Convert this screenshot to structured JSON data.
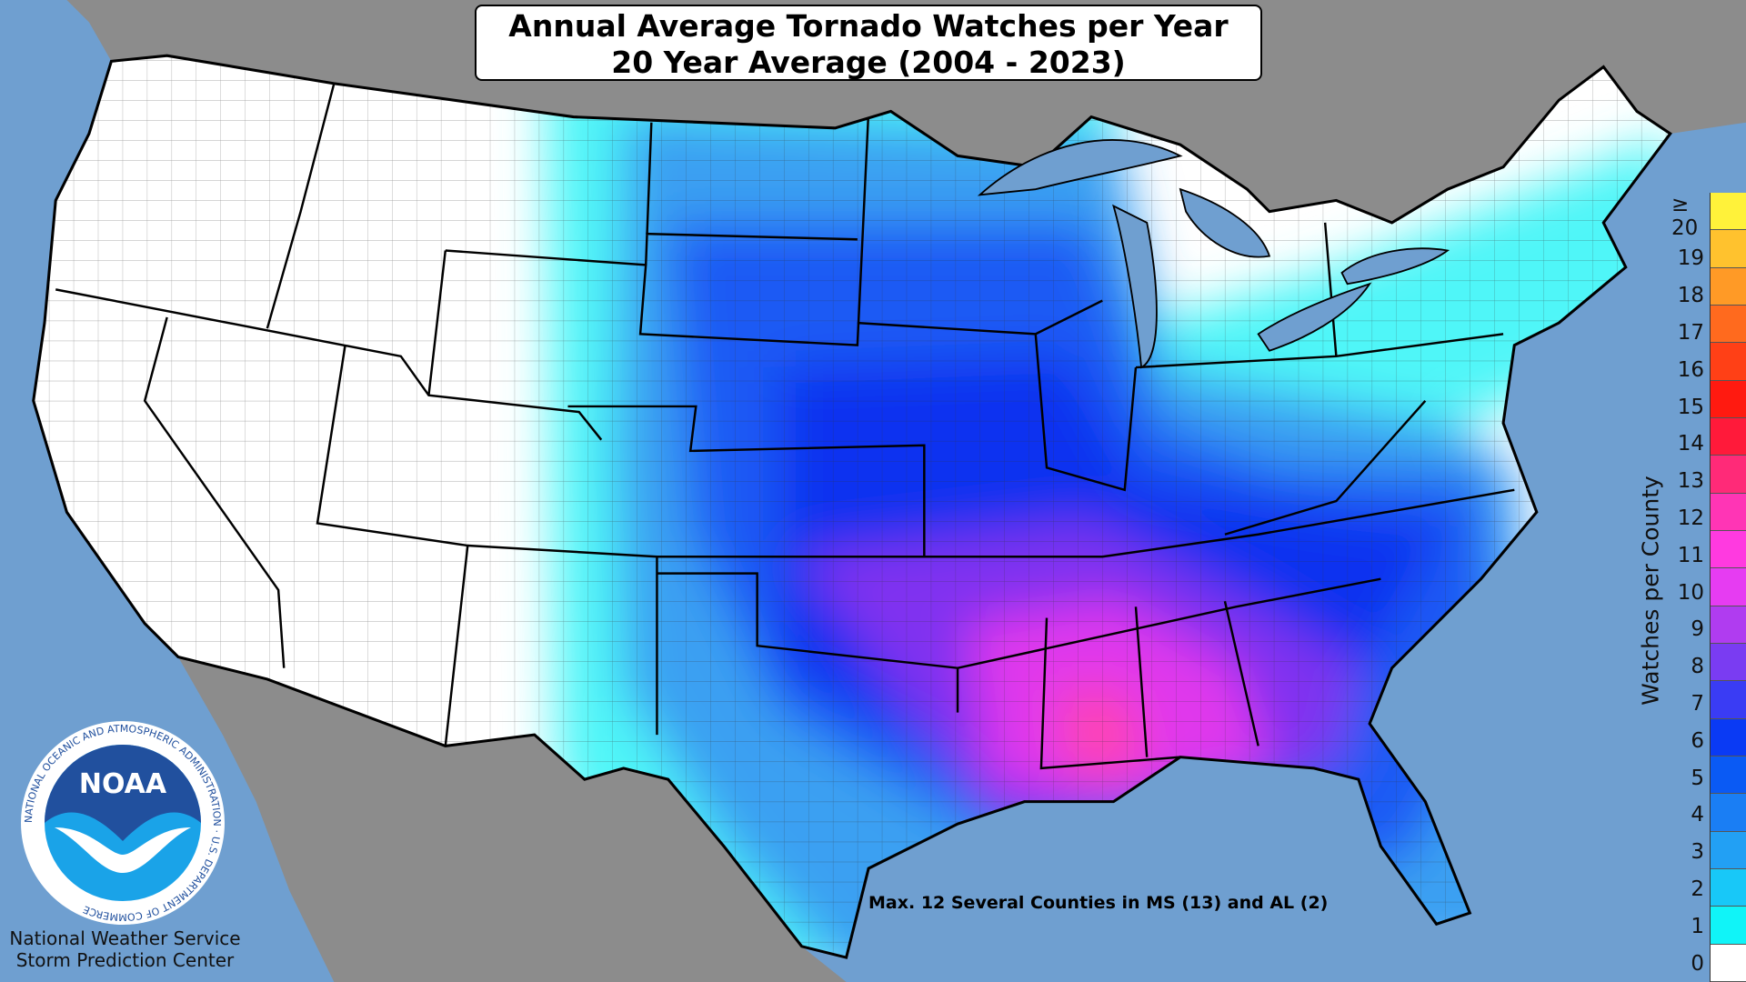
{
  "title": {
    "line1": "Annual Average Tornado Watches per Year",
    "line2": "20 Year Average (2004 - 2023)"
  },
  "annotation": "Max. 12 Several Counties in MS (13) and AL (2)",
  "credit": {
    "line1": "National Weather Service",
    "line2": "Storm Prediction Center"
  },
  "logo": {
    "text": "NOAA",
    "ring_text": "NATIONAL OCEANIC AND ATMOSPHERIC ADMINISTRATION · U.S. DEPARTMENT OF COMMERCE"
  },
  "legend": {
    "title": "Watches per County",
    "items": [
      {
        "label": "≥ 20",
        "color": "#fff23a"
      },
      {
        "label": "19",
        "color": "#ffc22e"
      },
      {
        "label": "18",
        "color": "#ff9a26"
      },
      {
        "label": "17",
        "color": "#ff6a1e"
      },
      {
        "label": "16",
        "color": "#ff4016"
      },
      {
        "label": "15",
        "color": "#ff1a10"
      },
      {
        "label": "14",
        "color": "#ff1a3a"
      },
      {
        "label": "13",
        "color": "#ff2a78"
      },
      {
        "label": "12",
        "color": "#ff35b5"
      },
      {
        "label": "11",
        "color": "#ff3ae0"
      },
      {
        "label": "10",
        "color": "#e63cf2"
      },
      {
        "label": "9",
        "color": "#b03cf0"
      },
      {
        "label": "8",
        "color": "#7a3cf2"
      },
      {
        "label": "7",
        "color": "#3a3cf4"
      },
      {
        "label": "6",
        "color": "#0a3af4"
      },
      {
        "label": "5",
        "color": "#0a5af4"
      },
      {
        "label": "4",
        "color": "#1a7ef4"
      },
      {
        "label": "3",
        "color": "#22a0f4"
      },
      {
        "label": "2",
        "color": "#18c8f8"
      },
      {
        "label": "1",
        "color": "#10f4f8"
      },
      {
        "label": "0",
        "color": "#ffffff"
      }
    ]
  }
}
